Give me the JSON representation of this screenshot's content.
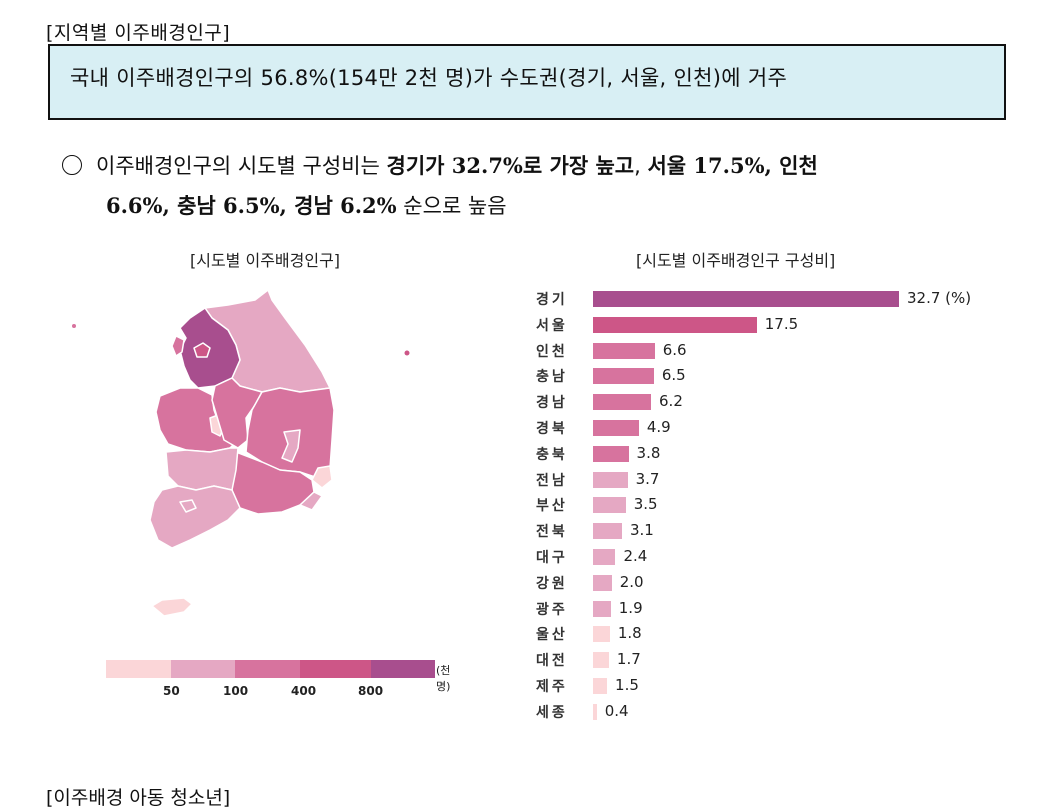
{
  "section_title": "[지역별 이주배경인구]",
  "summary": "국내 이주배경인구의 56.8%(154만 2천 명)가 수도권(경기, 서울, 인천)에 거주",
  "bullet": {
    "part1": "이주배경인구의 시도별 구성비는 ",
    "bold1": "경기가 32.7%로 가장 높고",
    "part2": ", ",
    "bold2": "서울 17.5%, 인천",
    "bold3": "6.6%, 충남 6.5%, 경남 6.2%",
    "part3": " 순으로 높음"
  },
  "map": {
    "title": "[시도별 이주배경인구]",
    "legend": {
      "colors": [
        "#fbd6d8",
        "#e5a8c3",
        "#d7739e",
        "#cd5687",
        "#a84e8e"
      ],
      "ticks": [
        "50",
        "100",
        "400",
        "800"
      ],
      "unit": "(천명)"
    }
  },
  "chart_data": {
    "type": "bar",
    "orientation": "horizontal",
    "title": "[시도별 이주배경인구 구성비]",
    "unit": "(%)",
    "categories": [
      "경기",
      "서울",
      "인천",
      "충남",
      "경남",
      "경북",
      "충북",
      "전남",
      "부산",
      "전북",
      "대구",
      "강원",
      "광주",
      "울산",
      "대전",
      "제주",
      "세종"
    ],
    "values": [
      32.7,
      17.5,
      6.6,
      6.5,
      6.2,
      4.9,
      3.8,
      3.7,
      3.5,
      3.1,
      2.4,
      2.0,
      1.9,
      1.8,
      1.7,
      1.5,
      0.4
    ],
    "labels": [
      "32.7 (%)",
      "17.5",
      "6.6",
      "6.5",
      "6.2",
      "4.9",
      "3.8",
      "3.7",
      "3.5",
      "3.1",
      "2.4",
      "2.0",
      "1.9",
      "1.8",
      "1.7",
      "1.5",
      "0.4"
    ],
    "colors": [
      "#a84e8e",
      "#cd5687",
      "#d7739e",
      "#d7739e",
      "#d7739e",
      "#d7739e",
      "#d7739e",
      "#e5a8c3",
      "#e5a8c3",
      "#e5a8c3",
      "#e5a8c3",
      "#e5a8c3",
      "#e5a8c3",
      "#fbd6d8",
      "#fbd6d8",
      "#fbd6d8",
      "#fbd6d8"
    ],
    "xlabel": "",
    "ylabel": "",
    "grid": false
  },
  "next_section_title": "[이주배경 아동 청소년]"
}
